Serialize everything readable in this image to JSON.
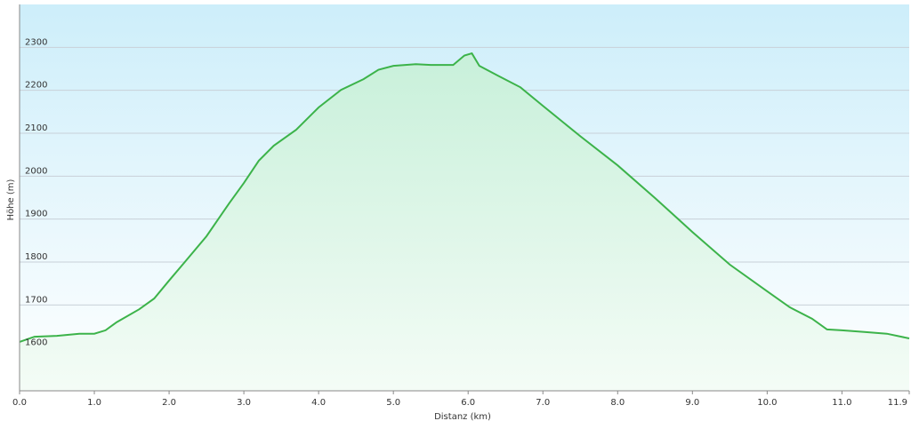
{
  "chart_data": {
    "type": "area",
    "x_label": "Distanz  (km)",
    "y_label": "Höhe (m)",
    "x": [
      0.0,
      0.2,
      0.5,
      0.8,
      1.0,
      1.15,
      1.3,
      1.6,
      1.8,
      2.0,
      2.2,
      2.5,
      2.8,
      3.0,
      3.2,
      3.4,
      3.7,
      4.0,
      4.3,
      4.6,
      4.8,
      5.0,
      5.3,
      5.5,
      5.8,
      5.95,
      6.05,
      6.15,
      6.4,
      6.7,
      7.0,
      7.5,
      8.0,
      8.5,
      9.0,
      9.5,
      10.0,
      10.3,
      10.6,
      10.8,
      11.0,
      11.3,
      11.6,
      11.9
    ],
    "series": [
      {
        "color": "#3cb34a",
        "values": [
          1614,
          1626,
          1628,
          1633,
          1633,
          1641,
          1660,
          1690,
          1715,
          1757,
          1798,
          1860,
          1936,
          1984,
          2036,
          2071,
          2108,
          2160,
          2201,
          2226,
          2248,
          2257,
          2261,
          2259,
          2259,
          2281,
          2286,
          2257,
          2234,
          2207,
          2164,
          2093,
          2025,
          1949,
          1870,
          1794,
          1732,
          1695,
          1668,
          1643,
          1641,
          1637,
          1633,
          1622
        ]
      }
    ],
    "xlim": [
      0,
      11.9
    ],
    "ylim": [
      1500,
      2400
    ],
    "xticks": [
      {
        "value": 0,
        "label": "0.0"
      },
      {
        "value": 1,
        "label": "1.0"
      },
      {
        "value": 2,
        "label": "2.0"
      },
      {
        "value": 3,
        "label": "3.0"
      },
      {
        "value": 4,
        "label": "4.0"
      },
      {
        "value": 5,
        "label": "5.0"
      },
      {
        "value": 6,
        "label": "6.0"
      },
      {
        "value": 7,
        "label": "7.0"
      },
      {
        "value": 8,
        "label": "8.0"
      },
      {
        "value": 9,
        "label": "9.0"
      },
      {
        "value": 10,
        "label": "10.0"
      },
      {
        "value": 11,
        "label": "11.0"
      },
      11.9
    ],
    "yticks": [
      1600,
      1700,
      1800,
      1900,
      2000,
      2100,
      2200,
      2300
    ],
    "grid": true
  }
}
